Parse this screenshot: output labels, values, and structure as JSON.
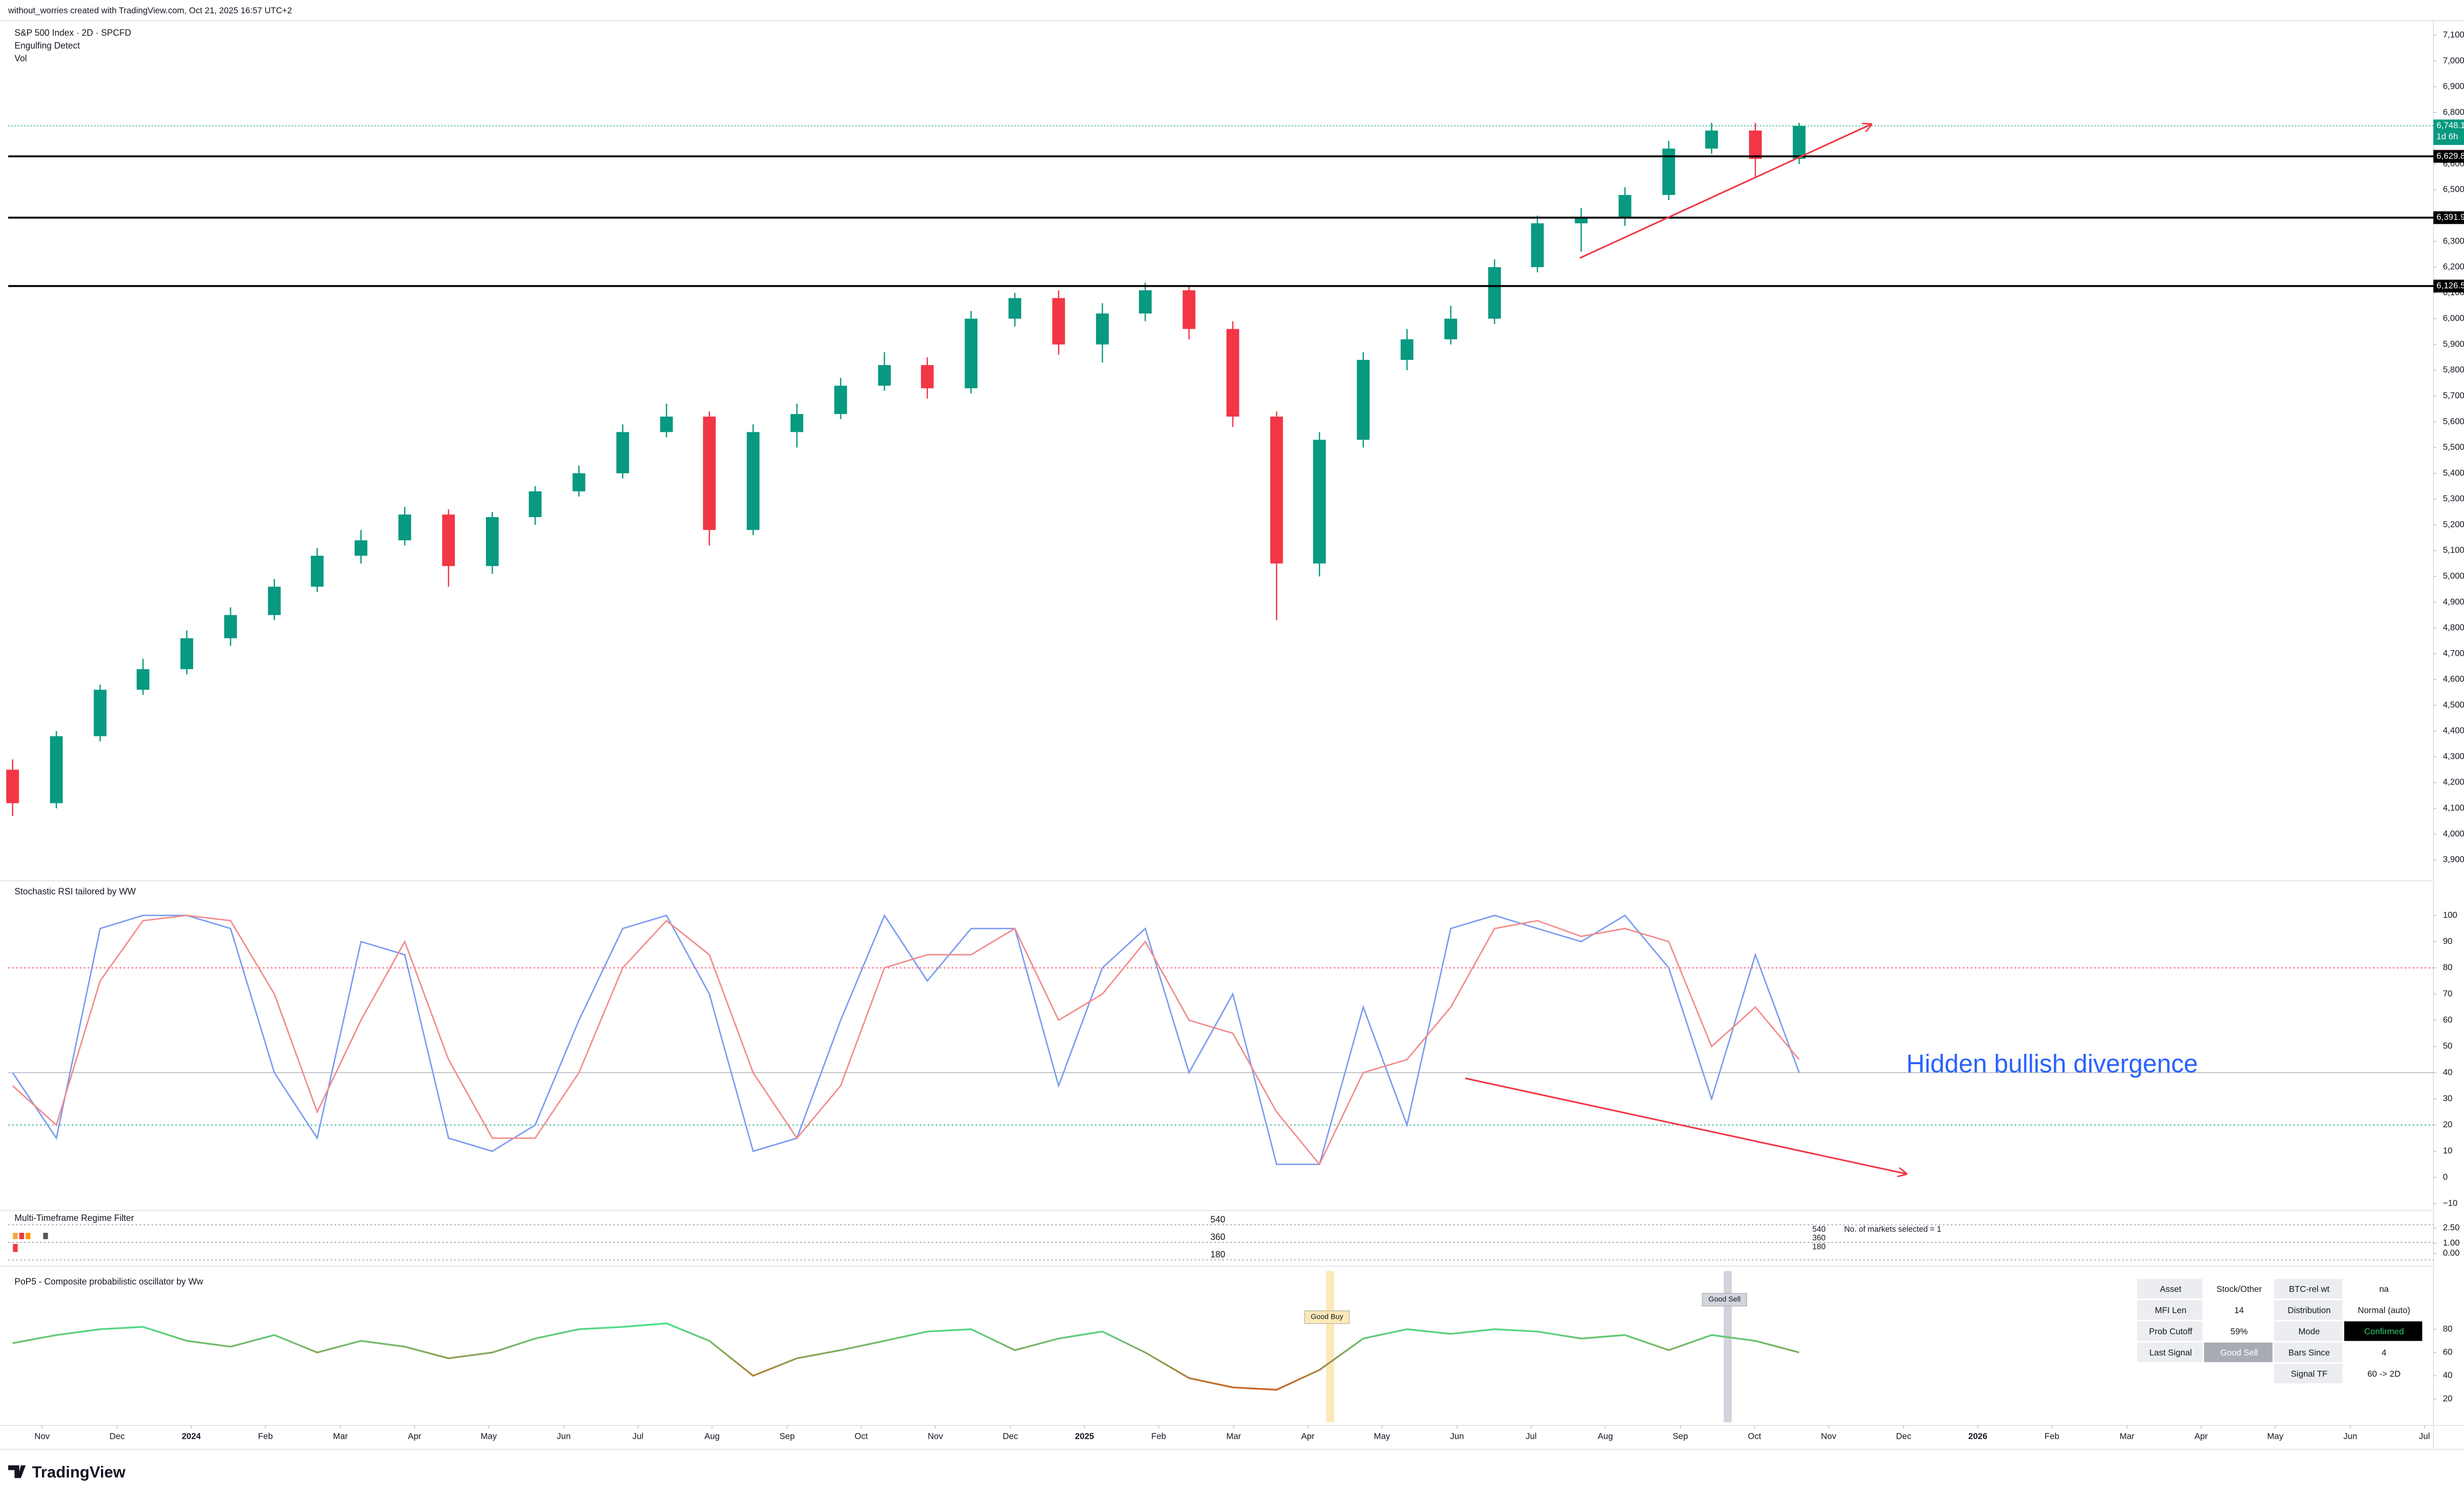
{
  "header": {
    "credit": "without_worries created with TradingView.com, Oct 21, 2025 16:57 UTC+2",
    "logo": "TradingView"
  },
  "chart_data": [
    {
      "type": "candlestick",
      "title": "S&P 500 Index · 2D · SPCFD",
      "legend": [
        "Engulfing Detect",
        "Vol"
      ],
      "up_color": "#089981",
      "down_color": "#f23645",
      "x": [
        2023.8,
        2023.849,
        2023.898,
        2023.946,
        2023.995,
        2024.044,
        2024.093,
        2024.141,
        2024.19,
        2024.239,
        2024.288,
        2024.337,
        2024.385,
        2024.434,
        2024.483,
        2024.532,
        2024.58,
        2024.629,
        2024.678,
        2024.727,
        2024.776,
        2024.824,
        2024.873,
        2024.922,
        2024.971,
        2025.02,
        2025.068,
        2025.117,
        2025.166,
        2025.215,
        2025.263,
        2025.312,
        2025.361,
        2025.41,
        2025.459,
        2025.507,
        2025.556,
        2025.605,
        2025.654,
        2025.702,
        2025.751,
        2025.8
      ],
      "open": [
        4250,
        4120,
        4380,
        4560,
        4640,
        4760,
        4850,
        4960,
        5080,
        5140,
        5240,
        5040,
        5230,
        5330,
        5400,
        5560,
        5620,
        5180,
        5560,
        5630,
        5740,
        5820,
        5730,
        6000,
        6080,
        5900,
        6020,
        6110,
        5960,
        5620,
        5050,
        5530,
        5840,
        5920,
        6000,
        6200,
        6370,
        6390,
        6480,
        6660,
        6730,
        6620
      ],
      "high": [
        4290,
        4400,
        4580,
        4680,
        4790,
        4880,
        4990,
        5110,
        5180,
        5270,
        5260,
        5250,
        5350,
        5430,
        5590,
        5670,
        5640,
        5590,
        5670,
        5770,
        5870,
        5850,
        6030,
        6100,
        6110,
        6060,
        6140,
        6130,
        5990,
        5640,
        5560,
        5870,
        5960,
        6050,
        6230,
        6400,
        6430,
        6510,
        6690,
        6760,
        6760,
        6760
      ],
      "low": [
        4070,
        4100,
        4360,
        4540,
        4620,
        4730,
        4830,
        4940,
        5050,
        5120,
        4960,
        5010,
        5200,
        5310,
        5380,
        5540,
        5120,
        5160,
        5500,
        5610,
        5720,
        5690,
        5710,
        5970,
        5860,
        5830,
        5990,
        5920,
        5580,
        4830,
        5000,
        5500,
        5800,
        5900,
        5980,
        6180,
        6260,
        6360,
        6460,
        6640,
        6550,
        6600
      ],
      "close": [
        4120,
        4380,
        4560,
        4640,
        4760,
        4850,
        4960,
        5080,
        5140,
        5240,
        5040,
        5230,
        5330,
        5400,
        5560,
        5620,
        5180,
        5560,
        5630,
        5740,
        5820,
        5730,
        6000,
        6080,
        5900,
        6020,
        6110,
        5960,
        5620,
        5050,
        5530,
        5840,
        5920,
        6000,
        6200,
        6370,
        6390,
        6480,
        6660,
        6730,
        6620,
        6748.12
      ],
      "xlim": [
        2023.795,
        2026.51
      ],
      "xticks": [
        {
          "value": 2023.833,
          "label": "Nov"
        },
        {
          "value": 2023.917,
          "label": "Dec"
        },
        2024,
        {
          "value": 2024.083,
          "label": "Feb"
        },
        {
          "value": 2024.167,
          "label": "Mar"
        },
        {
          "value": 2024.25,
          "label": "Apr"
        },
        {
          "value": 2024.333,
          "label": "May"
        },
        {
          "value": 2024.417,
          "label": "Jun"
        },
        {
          "value": 2024.5,
          "label": "Jul"
        },
        {
          "value": 2024.583,
          "label": "Aug"
        },
        {
          "value": 2024.667,
          "label": "Sep"
        },
        {
          "value": 2024.75,
          "label": "Oct"
        },
        {
          "value": 2024.833,
          "label": "Nov"
        },
        {
          "value": 2024.917,
          "label": "Dec"
        },
        2025,
        {
          "value": 2025.083,
          "label": "Feb"
        },
        {
          "value": 2025.167,
          "label": "Mar"
        },
        {
          "value": 2025.25,
          "label": "Apr"
        },
        {
          "value": 2025.333,
          "label": "May"
        },
        {
          "value": 2025.417,
          "label": "Jun"
        },
        {
          "value": 2025.5,
          "label": "Jul"
        },
        {
          "value": 2025.583,
          "label": "Aug"
        },
        {
          "value": 2025.667,
          "label": "Sep"
        },
        {
          "value": 2025.75,
          "label": "Oct"
        },
        {
          "value": 2025.833,
          "label": "Nov"
        },
        {
          "value": 2025.917,
          "label": "Dec"
        },
        2026,
        {
          "value": 2026.083,
          "label": "Feb"
        },
        {
          "value": 2026.167,
          "label": "Mar"
        },
        {
          "value": 2026.25,
          "label": "Apr"
        },
        {
          "value": 2026.333,
          "label": "May"
        },
        {
          "value": 2026.417,
          "label": "Jun"
        },
        {
          "value": 2026.5,
          "label": "Jul"
        }
      ],
      "ylim": [
        3825,
        7150
      ],
      "yticks": [
        {
          "value": 3900,
          "label": "3,900.00"
        },
        {
          "value": 4000,
          "label": "4,000.00"
        },
        {
          "value": 4100,
          "label": "4,100.00"
        },
        {
          "value": 4200,
          "label": "4,200.00"
        },
        {
          "value": 4300,
          "label": "4,300.00"
        },
        {
          "value": 4400,
          "label": "4,400.00"
        },
        {
          "value": 4500,
          "label": "4,500.00"
        },
        {
          "value": 4600,
          "label": "4,600.00"
        },
        {
          "value": 4700,
          "label": "4,700.00"
        },
        {
          "value": 4800,
          "label": "4,800.00"
        },
        {
          "value": 4900,
          "label": "4,900.00"
        },
        {
          "value": 5000,
          "label": "5,000.00"
        },
        {
          "value": 5100,
          "label": "5,100.00"
        },
        {
          "value": 5200,
          "label": "5,200.00"
        },
        {
          "value": 5300,
          "label": "5,300.00"
        },
        {
          "value": 5400,
          "label": "5,400.00"
        },
        {
          "value": 5500,
          "label": "5,500.00"
        },
        {
          "value": 5600,
          "label": "5,600.00"
        },
        {
          "value": 5700,
          "label": "5,700.00"
        },
        {
          "value": 5800,
          "label": "5,800.00"
        },
        {
          "value": 5900,
          "label": "5,900.00"
        },
        {
          "value": 6000,
          "label": "6,000.00"
        },
        {
          "value": 6100,
          "label": "6,100.00"
        },
        {
          "value": 6200,
          "label": "6,200.00"
        },
        {
          "value": 6300,
          "label": "6,300.00"
        },
        {
          "value": 6400,
          "label": "6,400.00"
        },
        {
          "value": 6500,
          "label": "6,500.00"
        },
        {
          "value": 6600,
          "label": "6,600.00"
        },
        {
          "value": 6700,
          "label": "6,700.00"
        },
        {
          "value": 6800,
          "label": "6,800.00"
        },
        {
          "value": 6900,
          "label": "6,900.00"
        },
        {
          "value": 7000,
          "label": "7,000.00"
        },
        {
          "value": 7100,
          "label": "7,100.00"
        }
      ],
      "levels": [
        {
          "value": 6629.84,
          "label": "6,629.84"
        },
        {
          "value": 6391.94,
          "label": "6,391.94"
        },
        {
          "value": 6126.5,
          "label": "6,126.50"
        }
      ],
      "last": {
        "value": 6748.12,
        "label": "6,748.12",
        "countdown": "1d 6h"
      }
    },
    {
      "type": "line",
      "title": "Stochastic RSI tailored by WW",
      "annotation": "Hidden bullish divergence",
      "x": [
        2023.8,
        2023.849,
        2023.898,
        2023.946,
        2023.995,
        2024.044,
        2024.093,
        2024.141,
        2024.19,
        2024.239,
        2024.288,
        2024.337,
        2024.385,
        2024.434,
        2024.483,
        2024.532,
        2024.58,
        2024.629,
        2024.678,
        2024.727,
        2024.776,
        2024.824,
        2024.873,
        2024.922,
        2024.971,
        2025.02,
        2025.068,
        2025.117,
        2025.166,
        2025.215,
        2025.263,
        2025.312,
        2025.361,
        2025.41,
        2025.459,
        2025.507,
        2025.556,
        2025.605,
        2025.654,
        2025.702,
        2025.751,
        2025.8
      ],
      "series": [
        {
          "color": "#7b9cf0",
          "values": [
            40,
            15,
            95,
            100,
            100,
            95,
            40,
            15,
            90,
            85,
            15,
            10,
            20,
            60,
            95,
            100,
            70,
            10,
            15,
            60,
            100,
            75,
            95,
            95,
            35,
            80,
            95,
            40,
            70,
            5,
            5,
            65,
            20,
            95,
            100,
            95,
            90,
            100,
            80,
            30,
            85,
            40
          ]
        },
        {
          "color": "#f28b8b",
          "values": [
            35,
            20,
            75,
            98,
            100,
            98,
            70,
            25,
            60,
            90,
            45,
            15,
            15,
            40,
            80,
            98,
            85,
            40,
            15,
            35,
            80,
            85,
            85,
            95,
            60,
            70,
            90,
            60,
            55,
            25,
            5,
            40,
            45,
            65,
            95,
            98,
            92,
            95,
            90,
            50,
            65,
            45
          ]
        }
      ],
      "ylim": [
        -12,
        112
      ],
      "yticks": [
        100,
        90,
        80,
        70,
        60,
        50,
        40,
        30,
        20,
        10,
        0,
        {
          "value": -10,
          "label": "−10"
        }
      ],
      "levels": [
        {
          "value": 80,
          "color": "#f23645"
        },
        {
          "value": 40,
          "color": "#b2b5be"
        },
        {
          "value": 20,
          "color": "#089981"
        }
      ]
    },
    {
      "type": "regime",
      "title": "Multi-Timeframe Regime Filter",
      "labels": [
        "540",
        "360",
        "180"
      ],
      "note": "No. of markets selected = 1",
      "ylim": [
        0,
        2.5
      ],
      "yticks": [
        {
          "value": 2.5,
          "label": "2.50"
        },
        {
          "value": 1,
          "label": "1.00"
        },
        {
          "value": 0,
          "label": "0.00"
        }
      ]
    },
    {
      "type": "oscillator",
      "title": "PoP5 - Composite probabilistic oscillator by Ww",
      "color_high": "#4be08a",
      "color_low": "#d2601e",
      "x": [
        2023.8,
        2023.849,
        2023.898,
        2023.946,
        2023.995,
        2024.044,
        2024.093,
        2024.141,
        2024.19,
        2024.239,
        2024.288,
        2024.337,
        2024.385,
        2024.434,
        2024.483,
        2024.532,
        2024.58,
        2024.629,
        2024.678,
        2024.727,
        2024.776,
        2024.824,
        2024.873,
        2024.922,
        2024.971,
        2025.02,
        2025.068,
        2025.117,
        2025.166,
        2025.215,
        2025.263,
        2025.312,
        2025.361,
        2025.41,
        2025.459,
        2025.507,
        2025.556,
        2025.605,
        2025.654,
        2025.702,
        2025.751,
        2025.8
      ],
      "values": [
        68,
        75,
        80,
        82,
        70,
        65,
        75,
        60,
        70,
        65,
        55,
        60,
        72,
        80,
        82,
        85,
        70,
        40,
        55,
        62,
        70,
        78,
        80,
        62,
        72,
        78,
        60,
        38,
        30,
        28,
        45,
        72,
        80,
        76,
        80,
        78,
        72,
        75,
        62,
        75,
        70,
        60
      ],
      "ylim": [
        0,
        130
      ],
      "yticks": [
        80,
        60,
        40,
        20
      ],
      "signals": [
        {
          "x": 2025.275,
          "label": "Good Buy",
          "color": "#fde9b8"
        },
        {
          "x": 2025.72,
          "label": "Good Sell",
          "color": "#d1d4dc"
        }
      ]
    }
  ],
  "table": {
    "rows": [
      [
        "Asset",
        "Stock/Other",
        "BTC-rel wt",
        "na"
      ],
      [
        "MFI Len",
        "14",
        "Distribution",
        "Normal (auto)"
      ],
      [
        "Prob Cutoff",
        "59%",
        "Mode",
        "Confirmed"
      ],
      [
        "Last Signal",
        "Good Sell",
        "Bars Since",
        "4"
      ],
      [
        "Signal TF",
        "60 -> 2D"
      ]
    ]
  }
}
